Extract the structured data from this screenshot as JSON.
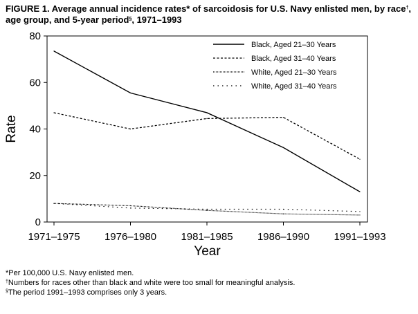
{
  "figure": {
    "title_part1": "FIGURE 1. Average annual incidence rates",
    "title_mark1": "*",
    "title_part2": " of sarcoidosis for U.S. Navy enlisted men, by race",
    "title_mark2": "†",
    "title_part3": ", age group, and 5-year period",
    "title_mark3": "§",
    "title_part4": ", 1971–1993"
  },
  "footnotes": {
    "note1_mark": "*",
    "note1_text": "Per 100,000 U.S. Navy enlisted men.",
    "note2_mark": "†",
    "note2_text": "Numbers for races other than black and white were too small for meaningful analysis.",
    "note3_mark": "§",
    "note3_text": "The period 1991–1993 comprises only 3 years."
  },
  "chart_data": {
    "type": "line",
    "title": "Average annual incidence rates of sarcoidosis for U.S. Navy enlisted men, by race, age group, and 5-year period, 1971–1993",
    "xlabel": "Year",
    "ylabel": "Rate",
    "categories": [
      "1971–1975",
      "1976–1980",
      "1981–1985",
      "1986–1990",
      "1991–1993"
    ],
    "ylim": [
      0,
      80
    ],
    "yticks": [
      0,
      20,
      40,
      60,
      80
    ],
    "grid": false,
    "legend_position": "top-right",
    "series": [
      {
        "name": "Black, Aged 21–30 Years",
        "style": "solid",
        "values": [
          73.5,
          55.5,
          47,
          32,
          13
        ]
      },
      {
        "name": "Black, Aged 31–40 Years",
        "style": "dashed",
        "values": [
          47,
          40,
          44.5,
          45,
          27
        ]
      },
      {
        "name": "White, Aged 21–30 Years",
        "style": "dotted",
        "values": [
          8,
          7,
          5,
          3.5,
          3
        ]
      },
      {
        "name": "White, Aged 31–40 Years",
        "style": "sparse-dotted",
        "values": [
          8,
          6,
          5.5,
          5.5,
          4.5
        ]
      }
    ],
    "line_color": "#000000"
  }
}
